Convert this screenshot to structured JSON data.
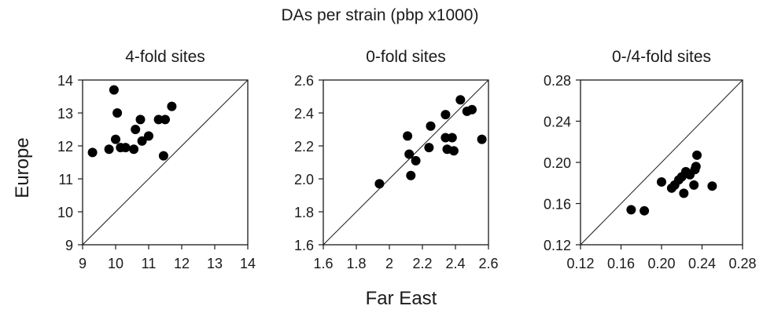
{
  "figure": {
    "title": "DAs per strain (pbp x1000)",
    "ylabel": "Europe",
    "xlabel": "Far East"
  },
  "chart_data": [
    {
      "type": "scatter",
      "title": "4-fold sites",
      "xlim": [
        9,
        14
      ],
      "ylim": [
        9,
        14
      ],
      "xticks": [
        "9",
        "10",
        "11",
        "12",
        "13",
        "14"
      ],
      "yticks": [
        "9",
        "10",
        "11",
        "12",
        "13",
        "14"
      ],
      "diagonal": true,
      "points": [
        {
          "x": 9.3,
          "y": 11.8
        },
        {
          "x": 9.8,
          "y": 11.9
        },
        {
          "x": 9.95,
          "y": 13.7
        },
        {
          "x": 10.0,
          "y": 12.2
        },
        {
          "x": 10.05,
          "y": 13.0
        },
        {
          "x": 10.15,
          "y": 11.95
        },
        {
          "x": 10.3,
          "y": 11.95
        },
        {
          "x": 10.55,
          "y": 11.9
        },
        {
          "x": 10.6,
          "y": 12.5
        },
        {
          "x": 10.75,
          "y": 12.8
        },
        {
          "x": 10.8,
          "y": 12.15
        },
        {
          "x": 11.0,
          "y": 12.3
        },
        {
          "x": 11.3,
          "y": 12.8
        },
        {
          "x": 11.45,
          "y": 11.7
        },
        {
          "x": 11.5,
          "y": 12.8
        },
        {
          "x": 11.7,
          "y": 13.2
        }
      ]
    },
    {
      "type": "scatter",
      "title": "0-fold sites",
      "xlim": [
        1.6,
        2.6
      ],
      "ylim": [
        1.6,
        2.6
      ],
      "xticks": [
        "1.6",
        "1.8",
        "2",
        "2.2",
        "2.4",
        "2.6"
      ],
      "yticks": [
        "1.6",
        "1.8",
        "2.0",
        "2.2",
        "2.4",
        "2.6"
      ],
      "diagonal": true,
      "points": [
        {
          "x": 1.94,
          "y": 1.97
        },
        {
          "x": 2.11,
          "y": 2.26
        },
        {
          "x": 2.12,
          "y": 2.15
        },
        {
          "x": 2.13,
          "y": 2.02
        },
        {
          "x": 2.16,
          "y": 2.11
        },
        {
          "x": 2.24,
          "y": 2.19
        },
        {
          "x": 2.25,
          "y": 2.32
        },
        {
          "x": 2.34,
          "y": 2.39
        },
        {
          "x": 2.34,
          "y": 2.25
        },
        {
          "x": 2.35,
          "y": 2.18
        },
        {
          "x": 2.38,
          "y": 2.25
        },
        {
          "x": 2.39,
          "y": 2.17
        },
        {
          "x": 2.43,
          "y": 2.48
        },
        {
          "x": 2.47,
          "y": 2.41
        },
        {
          "x": 2.5,
          "y": 2.42
        },
        {
          "x": 2.56,
          "y": 2.24
        }
      ]
    },
    {
      "type": "scatter",
      "title": "0-/4-fold sites",
      "xlim": [
        0.12,
        0.28
      ],
      "ylim": [
        0.12,
        0.28
      ],
      "xticks": [
        "0.12",
        "0.16",
        "0.20",
        "0.24",
        "0.28"
      ],
      "yticks": [
        "0.12",
        "0.16",
        "0.20",
        "0.24",
        "0.28"
      ],
      "diagonal": true,
      "points": [
        {
          "x": 0.17,
          "y": 0.154
        },
        {
          "x": 0.183,
          "y": 0.153
        },
        {
          "x": 0.2,
          "y": 0.181
        },
        {
          "x": 0.21,
          "y": 0.175
        },
        {
          "x": 0.213,
          "y": 0.178
        },
        {
          "x": 0.217,
          "y": 0.183
        },
        {
          "x": 0.22,
          "y": 0.186
        },
        {
          "x": 0.222,
          "y": 0.17
        },
        {
          "x": 0.224,
          "y": 0.191
        },
        {
          "x": 0.228,
          "y": 0.188
        },
        {
          "x": 0.232,
          "y": 0.178
        },
        {
          "x": 0.233,
          "y": 0.193
        },
        {
          "x": 0.234,
          "y": 0.196
        },
        {
          "x": 0.235,
          "y": 0.207
        },
        {
          "x": 0.25,
          "y": 0.177
        }
      ]
    }
  ]
}
